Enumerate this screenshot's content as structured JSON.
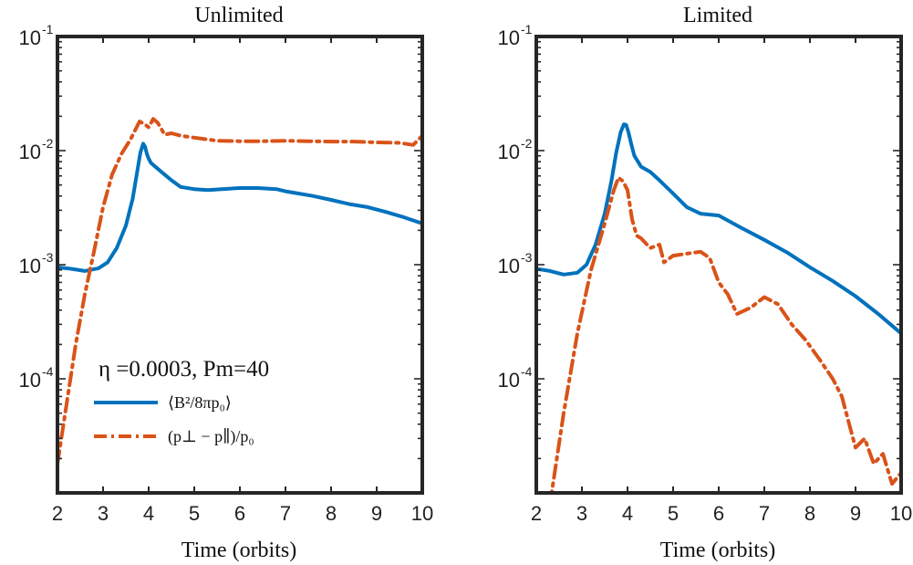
{
  "colors": {
    "blue": "#0072BD",
    "orange": "#D95319",
    "axis": "#262626"
  },
  "chart_data": [
    {
      "type": "line",
      "title": "Unlimited",
      "xlabel": "Time (orbits)",
      "ylabel": "",
      "xlim": [
        2,
        10
      ],
      "ylim": [
        1e-05,
        0.1
      ],
      "yscale": "log",
      "xticks": [
        "2",
        "3",
        "4",
        "5",
        "6",
        "7",
        "8",
        "9",
        "10"
      ],
      "yticks": [
        {
          "base": "10",
          "exp": "-4"
        },
        {
          "base": "10",
          "exp": "-3"
        },
        {
          "base": "10",
          "exp": "-2"
        },
        {
          "base": "10",
          "exp": "-1"
        }
      ],
      "annotation": "η =0.0003, Pm=40",
      "grid": false,
      "legend": "bottom-left",
      "series": [
        {
          "name": "⟨B²/8πp₀⟩",
          "style": "solid",
          "color": "blue",
          "x": [
            2.0,
            2.3,
            2.6,
            2.9,
            3.1,
            3.3,
            3.5,
            3.65,
            3.75,
            3.82,
            3.88,
            3.92,
            3.96,
            4.0,
            4.05,
            4.15,
            4.3,
            4.5,
            4.7,
            5.0,
            5.3,
            5.6,
            6.0,
            6.4,
            6.8,
            7.0,
            7.3,
            7.6,
            8.0,
            8.4,
            8.8,
            9.2,
            9.6,
            10.0
          ],
          "y": [
            0.00095,
            0.00092,
            0.00088,
            0.00093,
            0.00105,
            0.0014,
            0.0022,
            0.0038,
            0.0066,
            0.0097,
            0.0115,
            0.0108,
            0.0094,
            0.0085,
            0.0078,
            0.0072,
            0.0064,
            0.0055,
            0.0048,
            0.0046,
            0.0045,
            0.0046,
            0.0047,
            0.0047,
            0.0046,
            0.0044,
            0.0042,
            0.004,
            0.0037,
            0.0034,
            0.0032,
            0.0029,
            0.0026,
            0.0023
          ]
        },
        {
          "name": "(p⊥ − p∥)/p₀",
          "style": "dashdot",
          "color": "orange",
          "x": [
            2.0,
            2.2,
            2.4,
            2.6,
            2.8,
            3.0,
            3.2,
            3.4,
            3.6,
            3.8,
            3.9,
            4.0,
            4.1,
            4.2,
            4.35,
            4.5,
            4.7,
            5.0,
            5.5,
            6.0,
            6.5,
            7.0,
            7.5,
            8.0,
            8.5,
            9.0,
            9.5,
            9.8,
            10.0
          ],
          "y": [
            1.8e-05,
            6e-05,
            0.0002,
            0.00055,
            0.0013,
            0.0032,
            0.0062,
            0.0093,
            0.0125,
            0.018,
            0.0172,
            0.016,
            0.019,
            0.0175,
            0.0138,
            0.0142,
            0.0135,
            0.013,
            0.0122,
            0.0121,
            0.0121,
            0.0122,
            0.0121,
            0.012,
            0.012,
            0.0118,
            0.0117,
            0.0112,
            0.0135
          ]
        }
      ]
    },
    {
      "type": "line",
      "title": "Limited",
      "xlabel": "Time (orbits)",
      "ylabel": "",
      "xlim": [
        2,
        10
      ],
      "ylim": [
        1e-05,
        0.1
      ],
      "yscale": "log",
      "xticks": [
        "2",
        "3",
        "4",
        "5",
        "6",
        "7",
        "8",
        "9",
        "10"
      ],
      "yticks": [
        {
          "base": "10",
          "exp": "-4"
        },
        {
          "base": "10",
          "exp": "-3"
        },
        {
          "base": "10",
          "exp": "-2"
        },
        {
          "base": "10",
          "exp": "-1"
        }
      ],
      "grid": false,
      "series": [
        {
          "name": "",
          "style": "solid",
          "color": "blue",
          "x": [
            2.0,
            2.3,
            2.6,
            2.9,
            3.1,
            3.3,
            3.5,
            3.65,
            3.75,
            3.85,
            3.92,
            3.97,
            4.02,
            4.08,
            4.15,
            4.3,
            4.5,
            4.7,
            5.0,
            5.3,
            5.6,
            6.0,
            6.5,
            7.0,
            7.5,
            8.0,
            8.5,
            9.0,
            9.5,
            10.0
          ],
          "y": [
            0.00092,
            0.00088,
            0.00082,
            0.00085,
            0.001,
            0.0015,
            0.0028,
            0.0055,
            0.0095,
            0.0145,
            0.017,
            0.0168,
            0.0145,
            0.0115,
            0.009,
            0.0072,
            0.0065,
            0.0055,
            0.0042,
            0.0032,
            0.0028,
            0.0027,
            0.0021,
            0.00165,
            0.00128,
            0.00095,
            0.00072,
            0.00053,
            0.00037,
            0.00025
          ]
        },
        {
          "name": "",
          "style": "dashdot",
          "color": "orange",
          "x": [
            2.3,
            2.6,
            2.9,
            3.2,
            3.5,
            3.7,
            3.8,
            3.9,
            4.0,
            4.1,
            4.2,
            4.3,
            4.5,
            4.7,
            4.8,
            5.0,
            5.3,
            5.6,
            5.8,
            6.0,
            6.2,
            6.4,
            6.7,
            7.0,
            7.3,
            7.6,
            7.9,
            8.2,
            8.5,
            8.7,
            8.9,
            9.0,
            9.2,
            9.4,
            9.6,
            9.8,
            10.0
          ],
          "y": [
            8e-06,
            5e-05,
            0.00025,
            0.0009,
            0.0023,
            0.0045,
            0.0058,
            0.0054,
            0.0045,
            0.0025,
            0.0018,
            0.0017,
            0.0014,
            0.0015,
            0.00105,
            0.0012,
            0.00125,
            0.0013,
            0.00115,
            0.0007,
            0.00055,
            0.00037,
            0.00042,
            0.00052,
            0.00045,
            0.0003,
            0.00022,
            0.00015,
            0.0001,
            7e-05,
            3.5e-05,
            2.5e-05,
            3e-05,
            1.8e-05,
            2.2e-05,
            1.2e-05,
            1.5e-05
          ]
        }
      ]
    }
  ]
}
